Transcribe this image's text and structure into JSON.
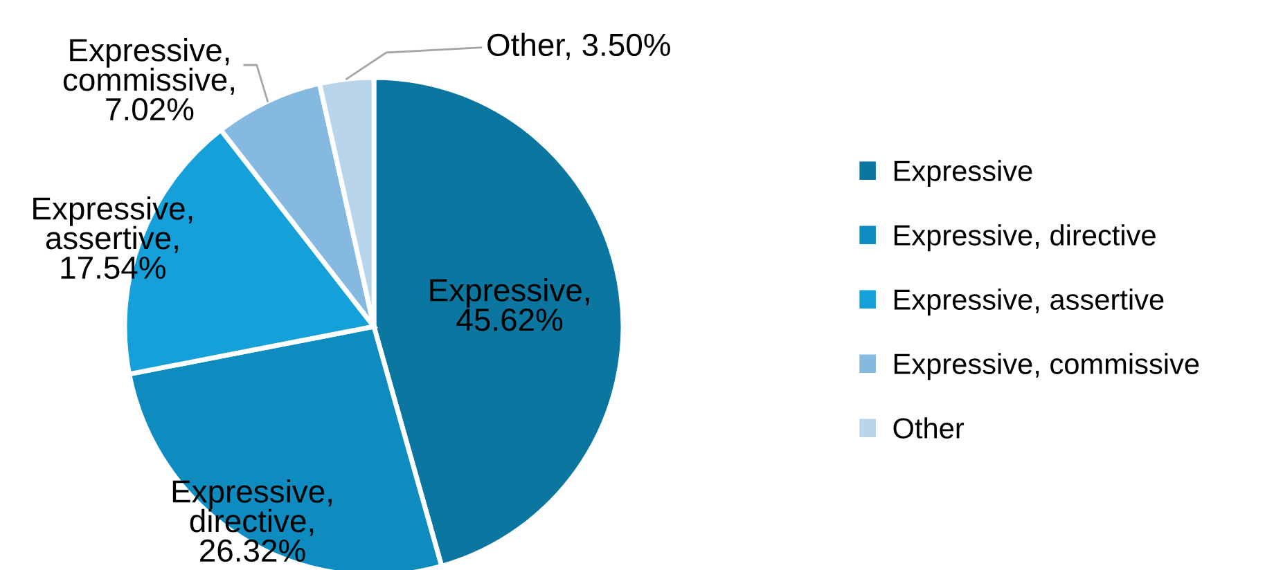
{
  "chart_data": {
    "type": "pie",
    "categories": [
      "Expressive",
      "Expressive, directive",
      "Expressive, assertive",
      "Expressive, commissive",
      "Other"
    ],
    "values": [
      45.62,
      26.32,
      17.54,
      7.02,
      3.5
    ],
    "colors": [
      "#0b76a0",
      "#0e8cc0",
      "#15a0d9",
      "#86b9e0",
      "#b9d5ec"
    ],
    "value_labels": [
      "Expressive,\n45.62%",
      "Expressive,\ndirective,\n26.32%",
      "Expressive,\nassertive,\n17.54%",
      "Expressive,\ncommissive,\n7.02%",
      "Other, 3.50%"
    ],
    "legend": "right"
  }
}
